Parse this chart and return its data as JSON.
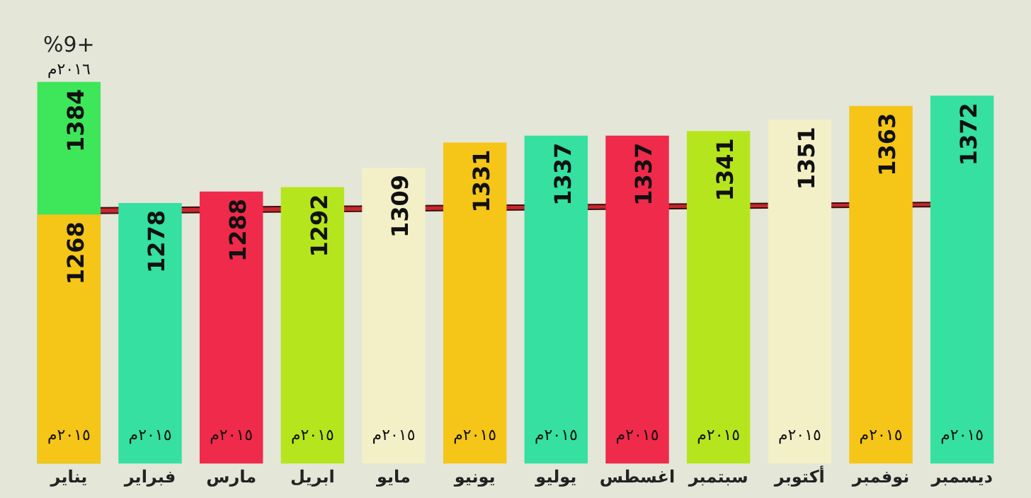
{
  "chart_data": {
    "type": "bar",
    "categories": [
      "يناير",
      "فبراير",
      "مارس",
      "ابريل",
      "مايو",
      "يونيو",
      "يوليو",
      "اغسطس",
      "سبتمبر",
      "أكتوبر",
      "نوفمبر",
      "ديسمبر"
    ],
    "series": [
      {
        "name": "٢٠١٥م",
        "colors": [
          "#f5c518",
          "#35e0a0",
          "#ef2a4a",
          "#b5e61d",
          "#f3f0c8",
          "#f5c518",
          "#35e0a0",
          "#ef2a4a",
          "#b5e61d",
          "#f3f0c8",
          "#f5c518",
          "#35e0a0"
        ],
        "values": [
          1268,
          1278,
          1288,
          1292,
          1309,
          1331,
          1337,
          1337,
          1341,
          1351,
          1363,
          1372
        ]
      },
      {
        "name": "٢٠١٦م",
        "color": "#3ee65a",
        "values": [
          1384,
          null,
          null,
          null,
          null,
          null,
          null,
          null,
          null,
          null,
          null,
          null
        ]
      }
    ],
    "tick_labels": "x",
    "grid": false,
    "legend": false,
    "data_labels": true,
    "annotations": [
      {
        "text": "%9+",
        "x": "يناير",
        "y": 1384
      }
    ]
  }
}
